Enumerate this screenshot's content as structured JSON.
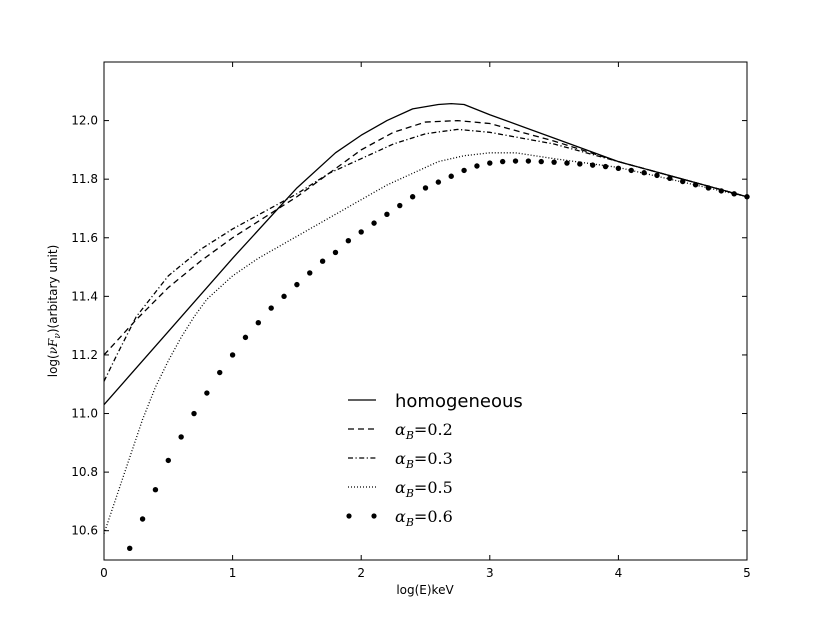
{
  "chart_data": {
    "type": "line",
    "title": "",
    "xlabel": "log(E)keV",
    "ylabel": "log(νF_ν)(arbitary unit)",
    "ylabel_parts": {
      "prefix": "log(",
      "nu": "ν",
      "F": "F",
      "sub": "ν",
      "suffix": ")(arbitary unit)"
    },
    "xlim": [
      0,
      5
    ],
    "ylim": [
      10.5,
      12.2
    ],
    "xticks": [
      0,
      1,
      2,
      3,
      4,
      5
    ],
    "xtick_labels": [
      "0",
      "1",
      "2",
      "3",
      "4",
      "5"
    ],
    "yticks": [
      10.6,
      10.8,
      11.0,
      11.2,
      11.4,
      11.6,
      11.8,
      12.0
    ],
    "ytick_labels": [
      "10.6",
      "10.8",
      "11.0",
      "11.2",
      "11.4",
      "11.6",
      "11.8",
      "12.0"
    ],
    "grid": false,
    "legend_position": "lower-center",
    "series": [
      {
        "name": "homogeneous",
        "style": "solid",
        "x": [
          0,
          0.5,
          1.0,
          1.5,
          1.8,
          2.0,
          2.2,
          2.4,
          2.6,
          2.7,
          2.8,
          3.0,
          3.5,
          4.0,
          4.5,
          5.0
        ],
        "y": [
          11.03,
          11.28,
          11.53,
          11.77,
          11.89,
          11.95,
          12.0,
          12.04,
          12.055,
          12.058,
          12.055,
          12.02,
          11.94,
          11.86,
          11.8,
          11.74
        ]
      },
      {
        "name": "α_B =0.2",
        "label_parts": {
          "symbol": "α",
          "sub": "B",
          "value": "=0.2"
        },
        "style": "dashed",
        "x": [
          0,
          0.25,
          0.5,
          0.75,
          1.0,
          1.25,
          1.5,
          1.75,
          2.0,
          2.25,
          2.5,
          2.75,
          3.0,
          3.5,
          4.0,
          4.5,
          5.0
        ],
        "y": [
          11.2,
          11.32,
          11.43,
          11.52,
          11.6,
          11.67,
          11.74,
          11.82,
          11.9,
          11.96,
          11.995,
          12.0,
          11.99,
          11.93,
          11.86,
          11.8,
          11.74
        ]
      },
      {
        "name": "α_B =0.3",
        "label_parts": {
          "symbol": "α",
          "sub": "B",
          "value": "=0.3"
        },
        "style": "dashdot",
        "x": [
          0,
          0.1,
          0.25,
          0.5,
          0.75,
          1.0,
          1.25,
          1.5,
          1.75,
          2.0,
          2.25,
          2.5,
          2.75,
          3.0,
          3.5,
          4.0,
          4.5,
          5.0
        ],
        "y": [
          11.11,
          11.2,
          11.33,
          11.47,
          11.56,
          11.63,
          11.69,
          11.75,
          11.82,
          11.87,
          11.92,
          11.955,
          11.97,
          11.96,
          11.92,
          11.86,
          11.8,
          11.74
        ]
      },
      {
        "name": "α_B =0.5",
        "label_parts": {
          "symbol": "α",
          "sub": "B",
          "value": "=0.5"
        },
        "style": "dotted",
        "x": [
          0,
          0.1,
          0.2,
          0.3,
          0.4,
          0.5,
          0.6,
          0.7,
          0.8,
          0.9,
          1.0,
          1.2,
          1.4,
          1.6,
          1.8,
          2.0,
          2.2,
          2.4,
          2.6,
          2.8,
          3.0,
          3.2,
          3.5,
          4.0,
          4.5,
          5.0
        ],
        "y": [
          10.59,
          10.72,
          10.85,
          10.98,
          11.09,
          11.18,
          11.26,
          11.33,
          11.39,
          11.43,
          11.47,
          11.53,
          11.58,
          11.63,
          11.68,
          11.73,
          11.78,
          11.82,
          11.86,
          11.88,
          11.89,
          11.89,
          11.87,
          11.84,
          11.79,
          11.74
        ]
      },
      {
        "name": "α_B =0.6",
        "label_parts": {
          "symbol": "α",
          "sub": "B",
          "value": "=0.6"
        },
        "style": "dots",
        "x": [
          0.2,
          0.3,
          0.4,
          0.5,
          0.6,
          0.7,
          0.8,
          0.9,
          1.0,
          1.1,
          1.2,
          1.3,
          1.4,
          1.5,
          1.6,
          1.7,
          1.8,
          1.9,
          2.0,
          2.1,
          2.2,
          2.3,
          2.4,
          2.5,
          2.6,
          2.7,
          2.8,
          2.9,
          3.0,
          3.1,
          3.2,
          3.3,
          3.4,
          3.5,
          3.6,
          3.7,
          3.8,
          3.9,
          4.0,
          4.1,
          4.2,
          4.3,
          4.4,
          4.5,
          4.6,
          4.7,
          4.8,
          4.9,
          5.0
        ],
        "y": [
          10.54,
          10.64,
          10.74,
          10.84,
          10.92,
          11.0,
          11.07,
          11.14,
          11.2,
          11.26,
          11.31,
          11.36,
          11.4,
          11.44,
          11.48,
          11.52,
          11.55,
          11.59,
          11.62,
          11.65,
          11.68,
          11.71,
          11.74,
          11.77,
          11.79,
          11.81,
          11.83,
          11.845,
          11.855,
          11.86,
          11.862,
          11.862,
          11.86,
          11.858,
          11.855,
          11.852,
          11.848,
          11.843,
          11.837,
          11.83,
          11.822,
          11.813,
          11.803,
          11.792,
          11.781,
          11.77,
          11.76,
          11.75,
          11.74
        ]
      }
    ]
  }
}
